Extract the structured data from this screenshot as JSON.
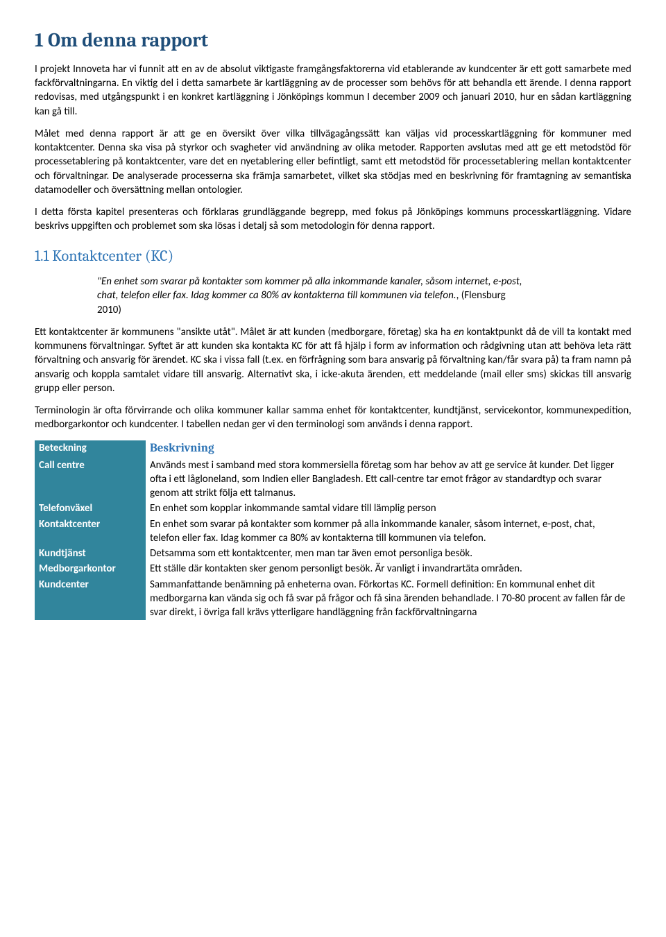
{
  "heading1": "1  Om denna rapport",
  "p1": "I projekt Innoveta har vi funnit att en av de absolut viktigaste framgångsfaktorerna vid etablerande av kundcenter är ett gott samarbete med fackförvaltningarna. En viktig del i detta samarbete är kartläggning av de processer som behövs för att behandla ett ärende. I denna rapport redovisas, med utgångspunkt i en konkret kartläggning i Jönköpings kommun I december 2009 och januari 2010, hur en sådan kartläggning kan gå till.",
  "p2": "Målet med denna rapport är att ge en översikt över vilka tillvägagångssätt kan väljas vid processkartläggning för kommuner med kontaktcenter. Denna ska visa på styrkor och svagheter vid användning av olika metoder. Rapporten avslutas med att ge ett metodstöd för processetablering på kontaktcenter, vare det en nyetablering eller befintligt, samt ett metodstöd för processetablering mellan kontaktcenter och förvaltningar. De analyserade processerna ska främja samarbetet, vilket ska stödjas med en beskrivning för framtagning av semantiska datamodeller och översättning mellan ontologier.",
  "p3": "I detta första kapitel presenteras och förklaras grundläggande begrepp, med fokus på Jönköpings kommuns processkartläggning. Vidare beskrivs uppgiften och problemet som ska lösas i detalj så som metodologin för denna rapport.",
  "heading2": "1.1   Kontaktcenter (KC)",
  "quote_italic": "\"En enhet som svarar på kontakter som kommer på alla inkommande kanaler, såsom internet, e-post, chat, telefon eller fax. Idag kommer ca 80% av kontakterna till kommunen via telefon.",
  "quote_plain": ", (Flensburg 2010)",
  "p4a": "Ett kontaktcenter är kommunens \"ansikte utåt\". Målet är att kunden (medborgare, företag) ska ha ",
  "p4b": "en",
  "p4c": " kontaktpunkt då de vill ta kontakt med kommunens förvaltningar. Syftet är att kunden ska kontakta KC för att få hjälp i form av information och rådgivning utan att behöva leta rätt förvaltning och ansvarig för ärendet. KC ska i vissa fall (t.ex. en förfrågning som bara ansvarig på förvaltning kan/får svara på) ta fram namn på ansvarig och koppla samtalet vidare till ansvarig. Alternativt ska, i icke-akuta ärenden, ett meddelande (mail eller sms) skickas till ansvarig grupp eller person.",
  "p5": "Terminologin är ofta förvirrande och olika kommuner kallar samma enhet för kontaktcenter, kundtjänst, servicekontor, kommunexpedition, medborgarkontor och kundcenter. I tabellen nedan ger vi den terminologi som används i denna rapport.",
  "table": {
    "header_left": "Beteckning",
    "header_right": "Beskrivning",
    "rows": [
      {
        "term": "Call centre",
        "desc": "Används mest i samband med stora kommersiella företag som har behov av att ge service åt kunder. Det ligger ofta i ett lågloneland, som Indien eller Bangladesh. Ett call-centre tar emot frågor av standardtyp och svarar genom att strikt följa ett talmanus."
      },
      {
        "term": "Telefonväxel",
        "desc": "En enhet som kopplar inkommande samtal vidare till lämplig person"
      },
      {
        "term": "Kontaktcenter",
        "desc": "En enhet som svarar på kontakter som kommer på alla inkommande kanaler, såsom internet, e-post, chat, telefon eller fax. Idag kommer ca 80% av kontakterna till kommunen via telefon."
      },
      {
        "term": "Kundtjänst",
        "desc": "Detsamma som ett kontaktcenter, men man tar även emot personliga besök."
      },
      {
        "term": "Medborgarkontor",
        "desc": "Ett ställe där kontakten sker genom personligt besök. Är vanligt i invandrartäta områden."
      },
      {
        "term": "Kundcenter",
        "desc": "Sammanfattande benämning på enheterna ovan. Förkortas KC. Formell definition: En kommunal enhet dit medborgarna kan vända sig och få svar på frågor och få sina ärenden behandlade. I 70-80 procent av fallen får de svar direkt, i övriga fall krävs ytterligare handläggning från fackförvaltningarna"
      }
    ]
  }
}
